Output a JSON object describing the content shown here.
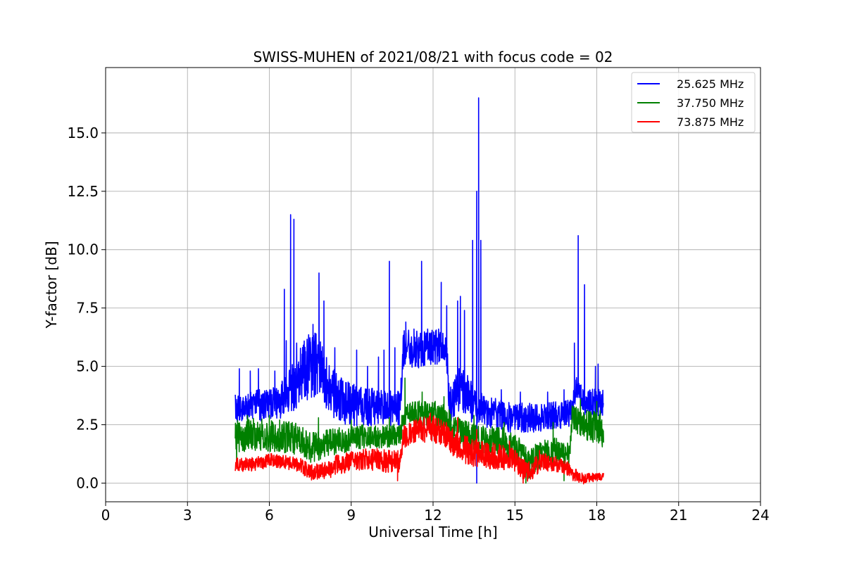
{
  "chart_data": {
    "type": "line",
    "title": "SWISS-MUHEN of 2021/08/21 with focus code = 02",
    "xlabel": "Universal Time [h]",
    "ylabel": "Y-factor [dB]",
    "xlim": [
      0,
      24
    ],
    "ylim": [
      -0.8,
      17.8
    ],
    "xticks": [
      0,
      3,
      6,
      9,
      12,
      15,
      18,
      21,
      24
    ],
    "xtick_labels": [
      "0",
      "3",
      "6",
      "9",
      "12",
      "15",
      "18",
      "21",
      "24"
    ],
    "yticks": [
      0.0,
      2.5,
      5.0,
      7.5,
      10.0,
      12.5,
      15.0
    ],
    "ytick_labels": [
      "0.0",
      "2.5",
      "5.0",
      "7.5",
      "10.0",
      "12.5",
      "15.0"
    ],
    "grid": true,
    "legend_position": "top-right",
    "series": [
      {
        "name": "25.625 MHz",
        "color": "#0000ff",
        "x_range": [
          4.75,
          18.25
        ],
        "baseline": [
          [
            4.75,
            3.2
          ],
          [
            5.5,
            3.3
          ],
          [
            6.3,
            3.4
          ],
          [
            6.8,
            4.0
          ],
          [
            7.3,
            4.8
          ],
          [
            7.8,
            5.2
          ],
          [
            8.2,
            4.0
          ],
          [
            8.7,
            3.5
          ],
          [
            9.3,
            3.3
          ],
          [
            10.0,
            3.3
          ],
          [
            10.8,
            3.2
          ],
          [
            10.9,
            5.8
          ],
          [
            11.5,
            5.7
          ],
          [
            12.0,
            5.9
          ],
          [
            12.5,
            5.8
          ],
          [
            12.6,
            3.3
          ],
          [
            13.0,
            4.2
          ],
          [
            13.5,
            3.3
          ],
          [
            14.0,
            3.0
          ],
          [
            15.0,
            2.8
          ],
          [
            16.0,
            2.8
          ],
          [
            17.0,
            3.0
          ],
          [
            17.3,
            4.2
          ],
          [
            17.6,
            3.4
          ],
          [
            18.25,
            3.5
          ]
        ],
        "spread": [
          [
            4.75,
            0.6
          ],
          [
            6.5,
            0.8
          ],
          [
            7.5,
            1.5
          ],
          [
            8.5,
            1.0
          ],
          [
            10.0,
            0.8
          ],
          [
            11.0,
            0.8
          ],
          [
            12.5,
            0.8
          ],
          [
            13.0,
            1.0
          ],
          [
            14.0,
            0.7
          ],
          [
            16.0,
            0.6
          ],
          [
            18.25,
            0.6
          ]
        ],
        "spikes": [
          [
            4.9,
            4.9
          ],
          [
            5.3,
            4.8
          ],
          [
            5.6,
            4.9
          ],
          [
            6.2,
            4.8
          ],
          [
            6.55,
            8.3
          ],
          [
            6.62,
            6.1
          ],
          [
            6.78,
            11.5
          ],
          [
            6.9,
            11.3
          ],
          [
            7.0,
            6.0
          ],
          [
            7.6,
            6.8
          ],
          [
            7.82,
            9.0
          ],
          [
            8.0,
            7.8
          ],
          [
            8.4,
            5.8
          ],
          [
            9.2,
            5.7
          ],
          [
            9.6,
            5.0
          ],
          [
            10.0,
            5.4
          ],
          [
            10.2,
            5.7
          ],
          [
            10.4,
            9.5
          ],
          [
            10.6,
            5.8
          ],
          [
            11.0,
            6.9
          ],
          [
            11.3,
            6.6
          ],
          [
            11.58,
            9.5
          ],
          [
            11.8,
            6.6
          ],
          [
            12.3,
            8.6
          ],
          [
            12.5,
            7.6
          ],
          [
            12.9,
            7.8
          ],
          [
            13.0,
            8.0
          ],
          [
            13.15,
            7.4
          ],
          [
            13.45,
            10.4
          ],
          [
            13.6,
            12.5
          ],
          [
            13.67,
            16.5
          ],
          [
            13.75,
            10.4
          ],
          [
            14.5,
            4.0
          ],
          [
            15.2,
            3.9
          ],
          [
            16.2,
            3.9
          ],
          [
            16.8,
            4.0
          ],
          [
            17.18,
            6.0
          ],
          [
            17.32,
            10.6
          ],
          [
            17.55,
            8.5
          ],
          [
            17.95,
            5.0
          ],
          [
            18.05,
            5.1
          ]
        ],
        "dips": [
          [
            13.6,
            0.0
          ]
        ]
      },
      {
        "name": "37.750 MHz",
        "color": "#008000",
        "x_range": [
          4.75,
          18.25
        ],
        "baseline": [
          [
            4.75,
            2.0
          ],
          [
            5.5,
            2.1
          ],
          [
            6.5,
            2.0
          ],
          [
            7.0,
            1.9
          ],
          [
            7.5,
            1.5
          ],
          [
            8.5,
            1.8
          ],
          [
            9.5,
            2.0
          ],
          [
            10.5,
            2.0
          ],
          [
            10.8,
            2.2
          ],
          [
            11.0,
            3.0
          ],
          [
            12.0,
            3.0
          ],
          [
            12.5,
            2.7
          ],
          [
            13.0,
            2.2
          ],
          [
            13.5,
            2.0
          ],
          [
            14.0,
            1.8
          ],
          [
            14.5,
            1.8
          ],
          [
            15.0,
            1.5
          ],
          [
            15.5,
            0.8
          ],
          [
            16.0,
            1.3
          ],
          [
            16.5,
            1.4
          ],
          [
            17.0,
            1.2
          ],
          [
            17.1,
            2.8
          ],
          [
            17.6,
            2.5
          ],
          [
            18.25,
            2.3
          ]
        ],
        "spread": [
          [
            4.75,
            0.7
          ],
          [
            7.0,
            0.7
          ],
          [
            8.0,
            0.6
          ],
          [
            10.0,
            0.5
          ],
          [
            11.0,
            0.5
          ],
          [
            12.5,
            0.6
          ],
          [
            14.0,
            0.6
          ],
          [
            15.0,
            0.7
          ],
          [
            16.0,
            0.6
          ],
          [
            17.0,
            0.5
          ],
          [
            18.25,
            0.8
          ]
        ],
        "spikes": [
          [
            5.2,
            2.9
          ],
          [
            6.0,
            2.9
          ],
          [
            7.8,
            2.8
          ],
          [
            9.0,
            2.7
          ],
          [
            10.4,
            2.8
          ],
          [
            10.97,
            4.5
          ],
          [
            11.6,
            3.9
          ],
          [
            12.4,
            3.7
          ],
          [
            13.5,
            2.9
          ],
          [
            14.6,
            2.6
          ],
          [
            16.4,
            2.6
          ],
          [
            17.4,
            3.6
          ],
          [
            18.0,
            3.5
          ]
        ],
        "dips": [
          [
            4.8,
            0.8
          ],
          [
            15.4,
            0.0
          ],
          [
            16.8,
            0.1
          ]
        ]
      },
      {
        "name": "73.875 MHz",
        "color": "#ff0000",
        "x_range": [
          4.75,
          18.25
        ],
        "baseline": [
          [
            4.75,
            0.8
          ],
          [
            5.5,
            0.8
          ],
          [
            6.0,
            1.0
          ],
          [
            6.5,
            0.9
          ],
          [
            7.0,
            0.8
          ],
          [
            7.5,
            0.5
          ],
          [
            8.0,
            0.5
          ],
          [
            8.5,
            0.8
          ],
          [
            9.0,
            0.9
          ],
          [
            9.5,
            1.0
          ],
          [
            10.0,
            1.0
          ],
          [
            10.5,
            0.9
          ],
          [
            10.8,
            0.9
          ],
          [
            10.9,
            2.0
          ],
          [
            11.5,
            2.3
          ],
          [
            12.0,
            2.3
          ],
          [
            12.5,
            2.0
          ],
          [
            13.0,
            1.5
          ],
          [
            13.5,
            1.3
          ],
          [
            14.0,
            1.2
          ],
          [
            14.5,
            1.1
          ],
          [
            15.0,
            1.0
          ],
          [
            15.3,
            0.6
          ],
          [
            15.5,
            0.5
          ],
          [
            16.0,
            0.9
          ],
          [
            16.5,
            0.8
          ],
          [
            17.0,
            0.6
          ],
          [
            17.1,
            0.4
          ],
          [
            17.5,
            0.2
          ],
          [
            18.25,
            0.3
          ]
        ],
        "spread": [
          [
            4.75,
            0.3
          ],
          [
            6.5,
            0.3
          ],
          [
            8.0,
            0.4
          ],
          [
            10.0,
            0.5
          ],
          [
            11.0,
            0.5
          ],
          [
            12.0,
            0.6
          ],
          [
            13.0,
            0.6
          ],
          [
            14.0,
            0.6
          ],
          [
            15.0,
            0.5
          ],
          [
            16.0,
            0.4
          ],
          [
            17.0,
            0.3
          ],
          [
            18.25,
            0.15
          ]
        ],
        "spikes": [
          [
            11.9,
            3.0
          ],
          [
            12.9,
            2.8
          ],
          [
            13.6,
            2.3
          ],
          [
            14.8,
            1.8
          ],
          [
            15.9,
            1.4
          ]
        ],
        "dips": [
          [
            10.7,
            0.1
          ],
          [
            15.3,
            0.0
          ],
          [
            17.2,
            0.1
          ]
        ]
      }
    ]
  }
}
